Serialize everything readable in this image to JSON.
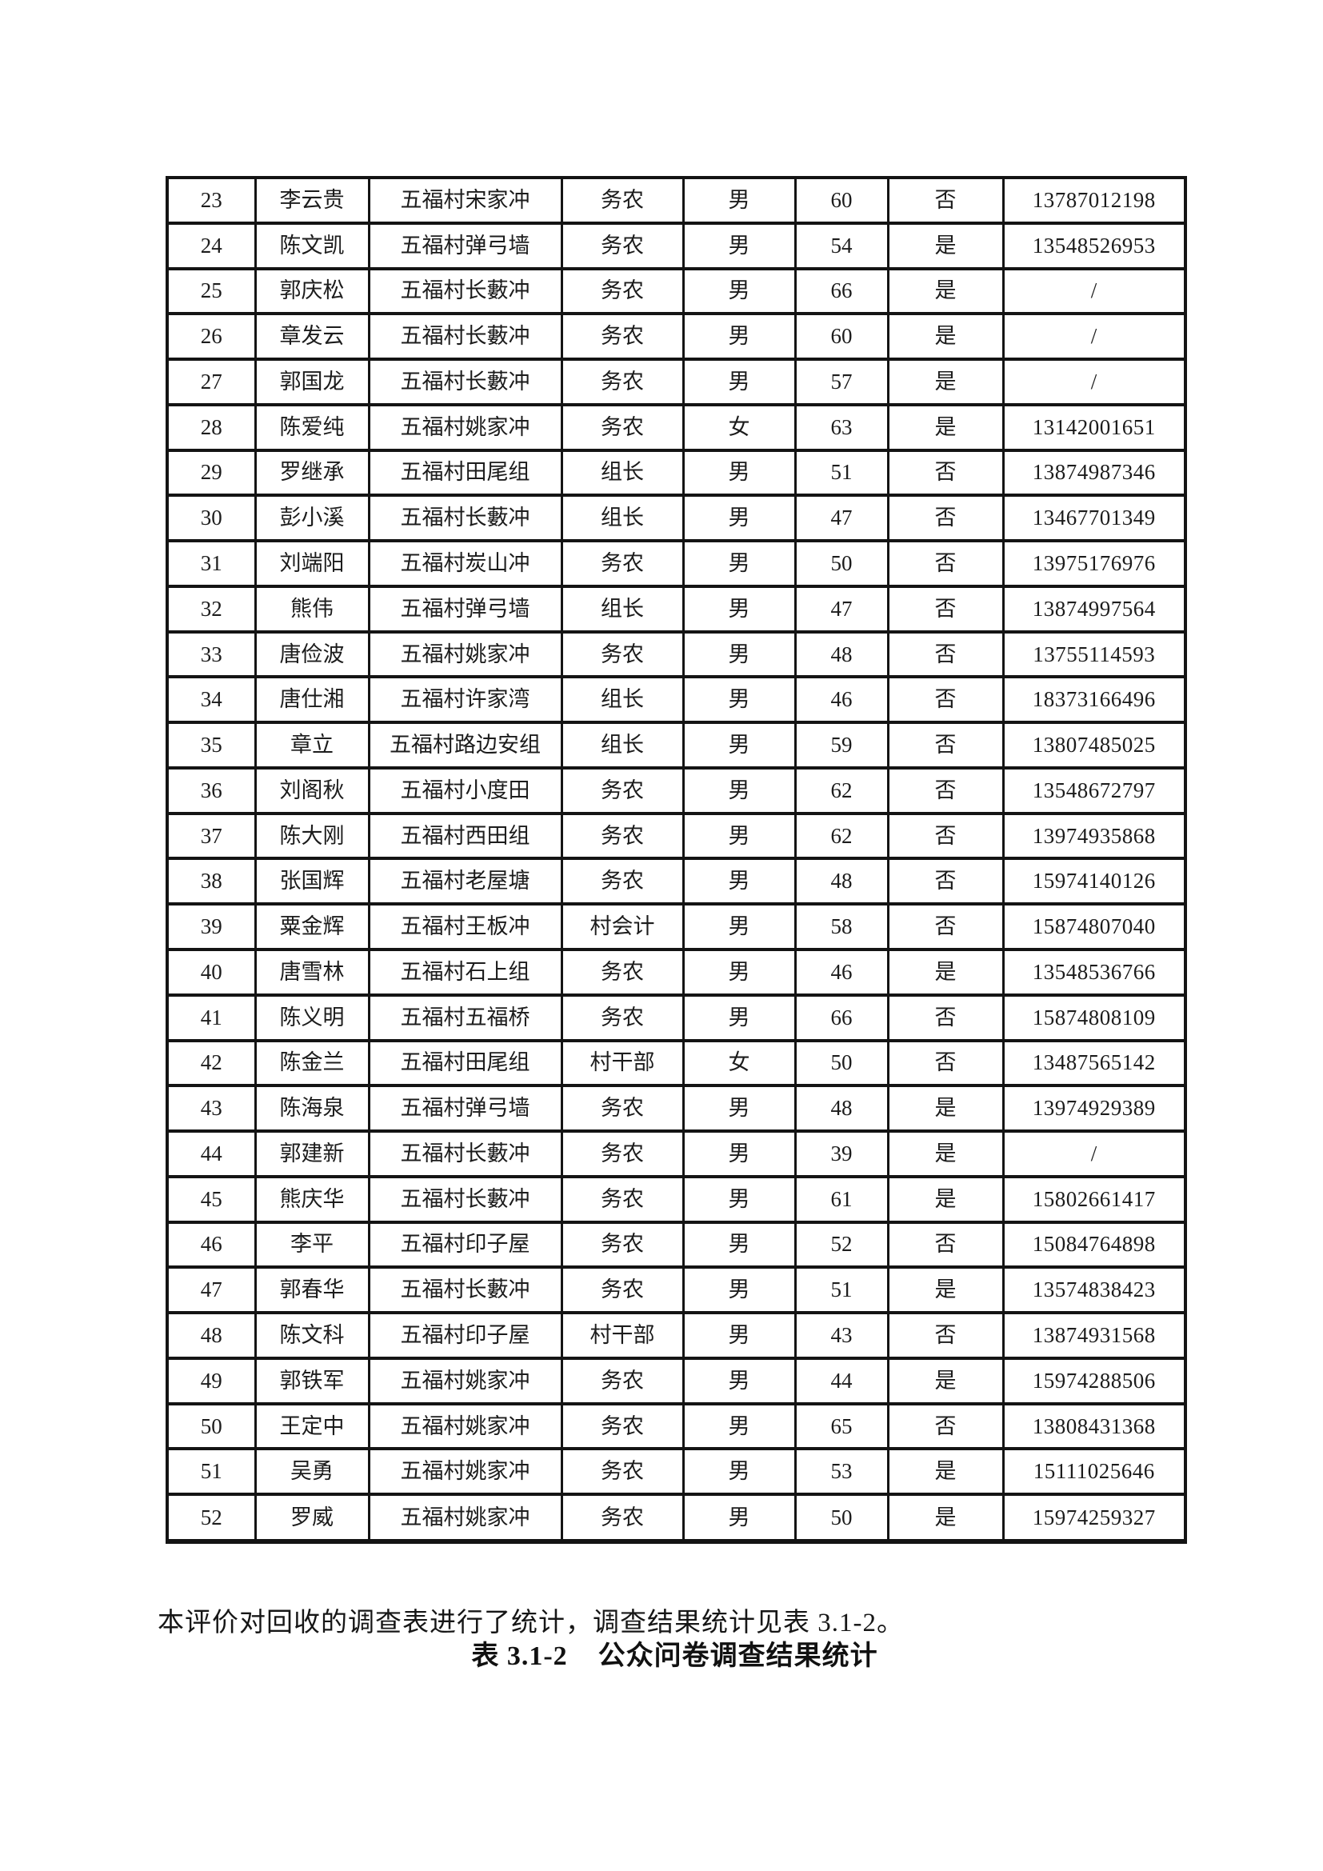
{
  "paragraph": {
    "text": "本评价对回收的调查表进行了统计，调查结果统计见表 3.1-2。"
  },
  "caption": {
    "number": "表 3.1-2",
    "title": "公众问卷调查结果统计"
  },
  "colors": {
    "text": "#1a1a1a",
    "border": "#141414",
    "background": "#ffffff"
  },
  "table": {
    "columns": [
      "serial",
      "name",
      "address",
      "occupation",
      "gender",
      "age",
      "answer",
      "phone"
    ],
    "rows": [
      [
        "23",
        "李云贵",
        "五福村宋家冲",
        "务农",
        "男",
        "60",
        "否",
        "13787012198"
      ],
      [
        "24",
        "陈文凯",
        "五福村弹弓墙",
        "务农",
        "男",
        "54",
        "是",
        "13548526953"
      ],
      [
        "25",
        "郭庆松",
        "五福村长藪冲",
        "务农",
        "男",
        "66",
        "是",
        "/"
      ],
      [
        "26",
        "章发云",
        "五福村长藪冲",
        "务农",
        "男",
        "60",
        "是",
        "/"
      ],
      [
        "27",
        "郭国龙",
        "五福村长藪冲",
        "务农",
        "男",
        "57",
        "是",
        "/"
      ],
      [
        "28",
        "陈爱纯",
        "五福村姚家冲",
        "务农",
        "女",
        "63",
        "是",
        "13142001651"
      ],
      [
        "29",
        "罗继承",
        "五福村田尾组",
        "组长",
        "男",
        "51",
        "否",
        "13874987346"
      ],
      [
        "30",
        "彭小溪",
        "五福村长藪冲",
        "组长",
        "男",
        "47",
        "否",
        "13467701349"
      ],
      [
        "31",
        "刘端阳",
        "五福村炭山冲",
        "务农",
        "男",
        "50",
        "否",
        "13975176976"
      ],
      [
        "32",
        "熊伟",
        "五福村弹弓墙",
        "组长",
        "男",
        "47",
        "否",
        "13874997564"
      ],
      [
        "33",
        "唐俭波",
        "五福村姚家冲",
        "务农",
        "男",
        "48",
        "否",
        "13755114593"
      ],
      [
        "34",
        "唐仕湘",
        "五福村许家湾",
        "组长",
        "男",
        "46",
        "否",
        "18373166496"
      ],
      [
        "35",
        "章立",
        "五福村路边安组",
        "组长",
        "男",
        "59",
        "否",
        "13807485025"
      ],
      [
        "36",
        "刘阁秋",
        "五福村小度田",
        "务农",
        "男",
        "62",
        "否",
        "13548672797"
      ],
      [
        "37",
        "陈大刚",
        "五福村西田组",
        "务农",
        "男",
        "62",
        "否",
        "13974935868"
      ],
      [
        "38",
        "张国辉",
        "五福村老屋塘",
        "务农",
        "男",
        "48",
        "否",
        "15974140126"
      ],
      [
        "39",
        "粟金辉",
        "五福村王板冲",
        "村会计",
        "男",
        "58",
        "否",
        "15874807040"
      ],
      [
        "40",
        "唐雪林",
        "五福村石上组",
        "务农",
        "男",
        "46",
        "是",
        "13548536766"
      ],
      [
        "41",
        "陈义明",
        "五福村五福桥",
        "务农",
        "男",
        "66",
        "否",
        "15874808109"
      ],
      [
        "42",
        "陈金兰",
        "五福村田尾组",
        "村干部",
        "女",
        "50",
        "否",
        "13487565142"
      ],
      [
        "43",
        "陈海泉",
        "五福村弹弓墙",
        "务农",
        "男",
        "48",
        "是",
        "13974929389"
      ],
      [
        "44",
        "郭建新",
        "五福村长藪冲",
        "务农",
        "男",
        "39",
        "是",
        "/"
      ],
      [
        "45",
        "熊庆华",
        "五福村长藪冲",
        "务农",
        "男",
        "61",
        "是",
        "15802661417"
      ],
      [
        "46",
        "李平",
        "五福村印子屋",
        "务农",
        "男",
        "52",
        "否",
        "15084764898"
      ],
      [
        "47",
        "郭春华",
        "五福村长藪冲",
        "务农",
        "男",
        "51",
        "是",
        "13574838423"
      ],
      [
        "48",
        "陈文科",
        "五福村印子屋",
        "村干部",
        "男",
        "43",
        "否",
        "13874931568"
      ],
      [
        "49",
        "郭铁军",
        "五福村姚家冲",
        "务农",
        "男",
        "44",
        "是",
        "15974288506"
      ],
      [
        "50",
        "王定中",
        "五福村姚家冲",
        "务农",
        "男",
        "65",
        "否",
        "13808431368"
      ],
      [
        "51",
        "吴勇",
        "五福村姚家冲",
        "务农",
        "男",
        "53",
        "是",
        "15111025646"
      ],
      [
        "52",
        "罗威",
        "五福村姚家冲",
        "务农",
        "男",
        "50",
        "是",
        "15974259327"
      ]
    ]
  }
}
